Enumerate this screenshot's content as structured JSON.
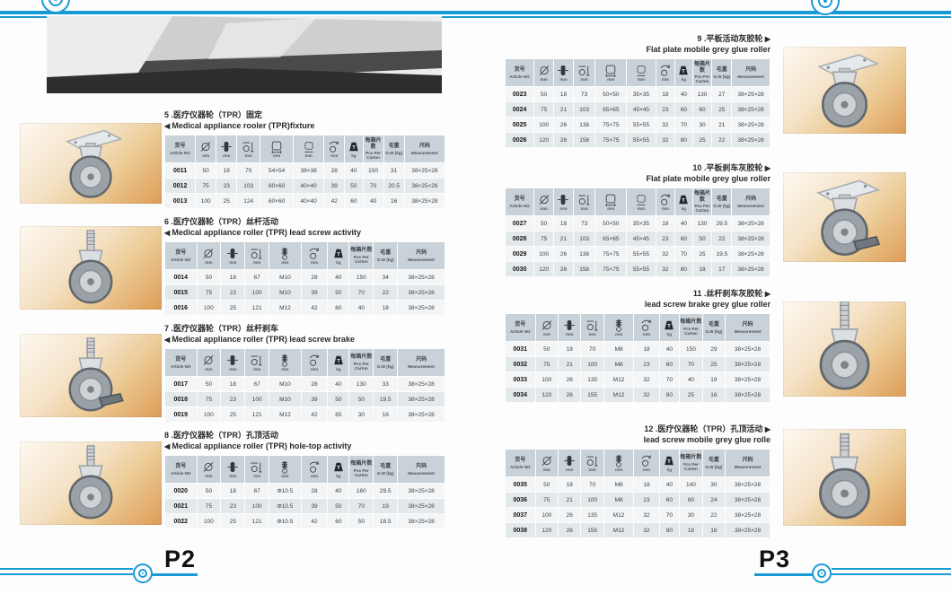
{
  "accent_color": "#1a9ad5",
  "page_footer": {
    "left_page_label": "P2",
    "right_page_label": "P3"
  },
  "table_headers": {
    "plate": [
      {
        "type": "text",
        "zh": "货号",
        "en": "Article NO",
        "icon": "article-no-header"
      },
      {
        "type": "icon",
        "icon": "diameter-icon",
        "unit": "mm"
      },
      {
        "type": "icon",
        "icon": "wheel-width-icon",
        "unit": "mm"
      },
      {
        "type": "icon",
        "icon": "mount-height-icon",
        "unit": "mm"
      },
      {
        "type": "icon",
        "icon": "plate-size-icon",
        "unit": "mm"
      },
      {
        "type": "icon",
        "icon": "bolt-pitch-icon",
        "unit": "mm"
      },
      {
        "type": "icon",
        "icon": "swivel-radius-icon",
        "unit": "mm"
      },
      {
        "type": "icon",
        "icon": "load-capacity-icon",
        "unit": "kg"
      },
      {
        "type": "text",
        "zh": "每箱片数",
        "en": "Pcs Per Carton",
        "icon": "pcs-per-carton-header"
      },
      {
        "type": "text",
        "zh": "毛重",
        "en": "G.W (kg)",
        "icon": "gross-weight-header"
      },
      {
        "type": "text",
        "zh": "尺码",
        "en": "Measurement",
        "icon": "measurement-header"
      }
    ],
    "stem": [
      {
        "type": "text",
        "zh": "货号",
        "en": "Article NO",
        "icon": "article-no-header"
      },
      {
        "type": "icon",
        "icon": "diameter-icon",
        "unit": "mm"
      },
      {
        "type": "icon",
        "icon": "wheel-width-icon",
        "unit": "mm"
      },
      {
        "type": "icon",
        "icon": "mount-height-icon",
        "unit": "mm"
      },
      {
        "type": "icon",
        "icon": "stem-thread-icon",
        "unit": "mm"
      },
      {
        "type": "icon",
        "icon": "swivel-radius-icon",
        "unit": "mm"
      },
      {
        "type": "icon",
        "icon": "load-capacity-icon",
        "unit": "kg"
      },
      {
        "type": "text",
        "zh": "每箱片数",
        "en": "Pcs Per Carton",
        "icon": "pcs-per-carton-header"
      },
      {
        "type": "text",
        "zh": "毛重",
        "en": "G.W (kg)",
        "icon": "gross-weight-header"
      },
      {
        "type": "text",
        "zh": "尺码",
        "en": "Measurement",
        "icon": "measurement-header"
      }
    ]
  },
  "sections": [
    {
      "id": "5",
      "side": "left",
      "header": "plate",
      "arrow": "left",
      "title_zh": "5 .医疗仪器轮（TPR）固定",
      "title_en": "Medical appliance rooler (TPR)fixture",
      "rows": [
        [
          "0011",
          "50",
          "18",
          "70",
          "54×54",
          "38×38",
          "28",
          "40",
          "150",
          "31",
          "38×25×28"
        ],
        [
          "0012",
          "75",
          "23",
          "103",
          "60×60",
          "40×40",
          "39",
          "50",
          "70",
          "20.5",
          "38×25×28"
        ],
        [
          "0013",
          "100",
          "25",
          "124",
          "60×60",
          "40×40",
          "42",
          "60",
          "40",
          "16",
          "38×25×28"
        ]
      ]
    },
    {
      "id": "6",
      "side": "left",
      "header": "stem",
      "arrow": "left",
      "title_zh": "6 .医疗仪器轮（TPR）丝杆活动",
      "title_en": "Medical appliance roller (TPR) lead screw activity",
      "rows": [
        [
          "0014",
          "50",
          "18",
          "67",
          "M10",
          "28",
          "40",
          "150",
          "34",
          "38×25×28"
        ],
        [
          "0015",
          "75",
          "23",
          "100",
          "M10",
          "39",
          "50",
          "70",
          "22",
          "38×25×28"
        ],
        [
          "0016",
          "100",
          "25",
          "121",
          "M12",
          "42",
          "60",
          "40",
          "18",
          "38×25×28"
        ]
      ]
    },
    {
      "id": "7",
      "side": "left",
      "header": "stem",
      "arrow": "left",
      "title_zh": "7 .医疗仪器轮（TPR）丝杆刹车",
      "title_en": "Medical appliance roller (TPR) lead screw brake",
      "rows": [
        [
          "0017",
          "50",
          "18",
          "67",
          "M10",
          "28",
          "40",
          "130",
          "33",
          "38×25×28"
        ],
        [
          "0018",
          "75",
          "23",
          "100",
          "M10",
          "39",
          "50",
          "50",
          "19.5",
          "38×25×28"
        ],
        [
          "0019",
          "100",
          "25",
          "121",
          "M12",
          "42",
          "65",
          "30",
          "16",
          "38×25×28"
        ]
      ]
    },
    {
      "id": "8",
      "side": "left",
      "header": "stem",
      "arrow": "left",
      "title_zh": "8 .医疗仪器轮（TPR）孔顶活动",
      "title_en": "Medical appliance roller (TPR) hole-top activity",
      "rows": [
        [
          "0020",
          "50",
          "18",
          "67",
          "Φ10.5",
          "28",
          "40",
          "160",
          "29.5",
          "38×25×28"
        ],
        [
          "0021",
          "75",
          "23",
          "100",
          "Φ10.5",
          "39",
          "50",
          "70",
          "19",
          "38×25×28"
        ],
        [
          "0022",
          "100",
          "25",
          "121",
          "Φ10.5",
          "42",
          "60",
          "50",
          "18.5",
          "38×25×28"
        ]
      ]
    },
    {
      "id": "9",
      "side": "right",
      "header": "plate",
      "arrow": "right",
      "title_zh": "9 .平板活动灰胶轮",
      "title_en": "Flat plate mobile grey glue roller",
      "rows": [
        [
          "0023",
          "50",
          "18",
          "73",
          "50×50",
          "35×35",
          "18",
          "40",
          "130",
          "27",
          "38×25×28"
        ],
        [
          "0024",
          "75",
          "21",
          "103",
          "65×65",
          "45×45",
          "23",
          "60",
          "60",
          "25",
          "38×25×28"
        ],
        [
          "0025",
          "100",
          "26",
          "138",
          "75×75",
          "55×55",
          "32",
          "70",
          "30",
          "21",
          "38×25×28"
        ],
        [
          "0026",
          "120",
          "26",
          "158",
          "75×75",
          "55×55",
          "32",
          "80",
          "25",
          "22",
          "38×25×28"
        ]
      ]
    },
    {
      "id": "10",
      "side": "right",
      "header": "plate",
      "arrow": "right",
      "title_zh": "10 .平板刹车灰胶轮",
      "title_en": "Flat plate mobile grey glue roller",
      "rows": [
        [
          "0027",
          "50",
          "18",
          "73",
          "50×50",
          "35×35",
          "18",
          "40",
          "130",
          "29.5",
          "38×25×28"
        ],
        [
          "0028",
          "75",
          "21",
          "103",
          "65×65",
          "45×45",
          "23",
          "60",
          "50",
          "22",
          "38×25×28"
        ],
        [
          "0029",
          "100",
          "26",
          "138",
          "75×75",
          "55×55",
          "32",
          "70",
          "25",
          "19.5",
          "38×25×28"
        ],
        [
          "0030",
          "120",
          "26",
          "158",
          "75×75",
          "55×55",
          "32",
          "80",
          "18",
          "17",
          "38×25×28"
        ]
      ]
    },
    {
      "id": "11",
      "side": "right",
      "header": "stem",
      "arrow": "right",
      "title_zh": "11 .丝杆刹车灰胶轮",
      "title_en": "lead screw brake grey glue roller",
      "rows": [
        [
          "0031",
          "50",
          "18",
          "70",
          "M8",
          "18",
          "40",
          "150",
          "29",
          "38×25×28"
        ],
        [
          "0032",
          "75",
          "21",
          "100",
          "M8",
          "23",
          "60",
          "70",
          "25",
          "38×25×28"
        ],
        [
          "0033",
          "100",
          "26",
          "135",
          "M12",
          "32",
          "70",
          "40",
          "19",
          "38×25×28"
        ],
        [
          "0034",
          "120",
          "26",
          "155",
          "M12",
          "32",
          "80",
          "25",
          "16",
          "38×25×28"
        ]
      ]
    },
    {
      "id": "12",
      "side": "right",
      "header": "stem",
      "arrow": "right",
      "title_zh": "12 .医疗仪器轮（TPR）孔顶活动",
      "title_en": "lead screw mobile grey glue rolle",
      "rows": [
        [
          "0035",
          "50",
          "18",
          "70",
          "M8",
          "18",
          "40",
          "140",
          "30",
          "38×25×28"
        ],
        [
          "0036",
          "75",
          "21",
          "100",
          "M8",
          "23",
          "60",
          "60",
          "24",
          "38×25×28"
        ],
        [
          "0037",
          "100",
          "26",
          "135",
          "M12",
          "32",
          "70",
          "30",
          "22",
          "38×25×28"
        ],
        [
          "0038",
          "120",
          "26",
          "155",
          "M12",
          "32",
          "80",
          "18",
          "16",
          "38×25×28"
        ]
      ]
    }
  ],
  "photos": [
    {
      "name": "bracket-detail-photo",
      "variant": "bracket"
    },
    {
      "name": "caster-photo-plate-fixed",
      "variant": "plate"
    },
    {
      "name": "caster-photo-lead-screw",
      "variant": "stem"
    },
    {
      "name": "caster-photo-lead-screw-brake",
      "variant": "stem-brake"
    },
    {
      "name": "caster-photo-hole-top",
      "variant": "stem"
    },
    {
      "name": "caster-photo-flat-plate-mobile",
      "variant": "plate"
    },
    {
      "name": "caster-photo-flat-plate-brake",
      "variant": "plate-brake"
    },
    {
      "name": "caster-photo-lead-screw-brake-grey",
      "variant": "stem-long"
    },
    {
      "name": "caster-photo-lead-screw-mobile",
      "variant": "stem"
    }
  ]
}
